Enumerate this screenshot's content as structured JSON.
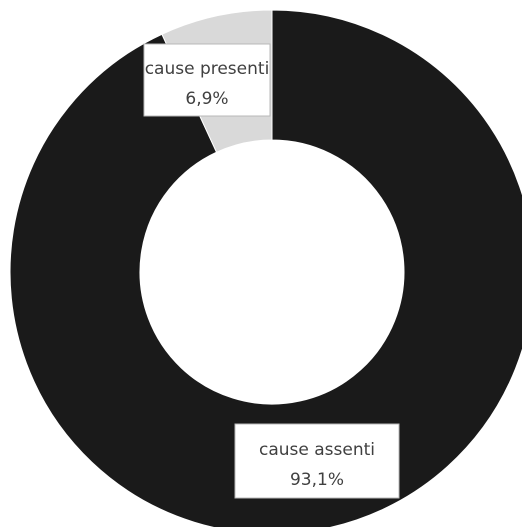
{
  "chart_data": {
    "type": "pie",
    "donut": true,
    "legend": "none",
    "slices": [
      {
        "label": "cause assenti",
        "value": 93.1,
        "value_label": "93,1%",
        "color": "#1a1a1a"
      },
      {
        "label": "cause presenti",
        "value": 6.9,
        "value_label": "6,9%",
        "color": "#d9d9d9"
      }
    ]
  }
}
